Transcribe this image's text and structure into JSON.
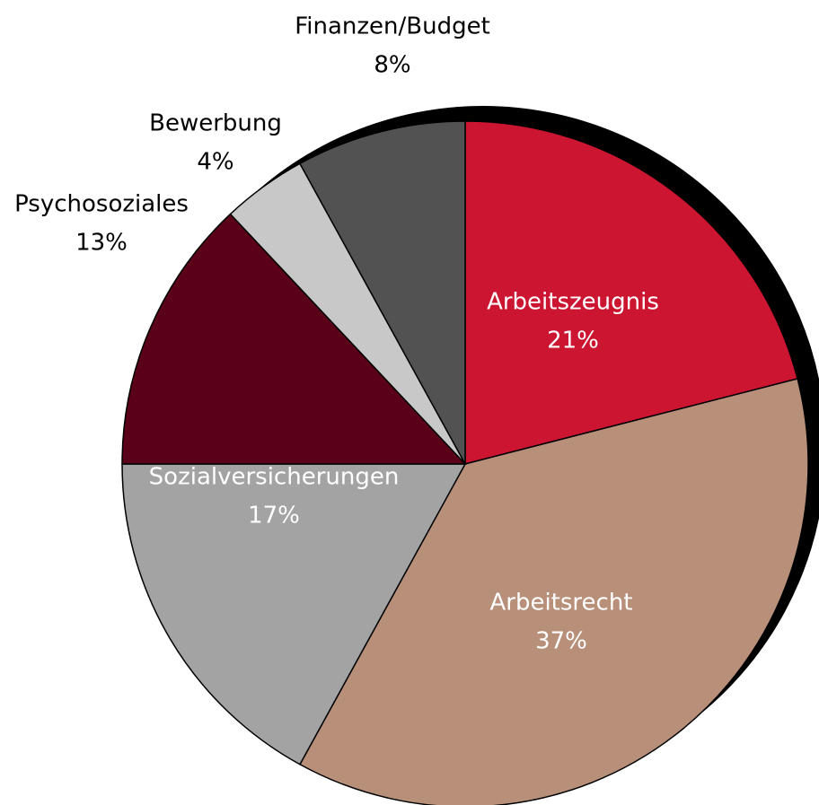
{
  "chart_data": {
    "type": "pie",
    "categories": [
      "Arbeitszeugnis",
      "Arbeitsrecht",
      "Sozialversicherungen",
      "Psychosoziales",
      "Bewerbung",
      "Finanzen/Budget"
    ],
    "values": [
      21,
      37,
      17,
      13,
      4,
      8
    ],
    "value_labels": [
      "21%",
      "37%",
      "17%",
      "13%",
      "4%",
      "8%"
    ],
    "colors": [
      "#cc1530",
      "#b8907a",
      "#a3a3a3",
      "#5a0018",
      "#c8c8c8",
      "#525252"
    ]
  }
}
